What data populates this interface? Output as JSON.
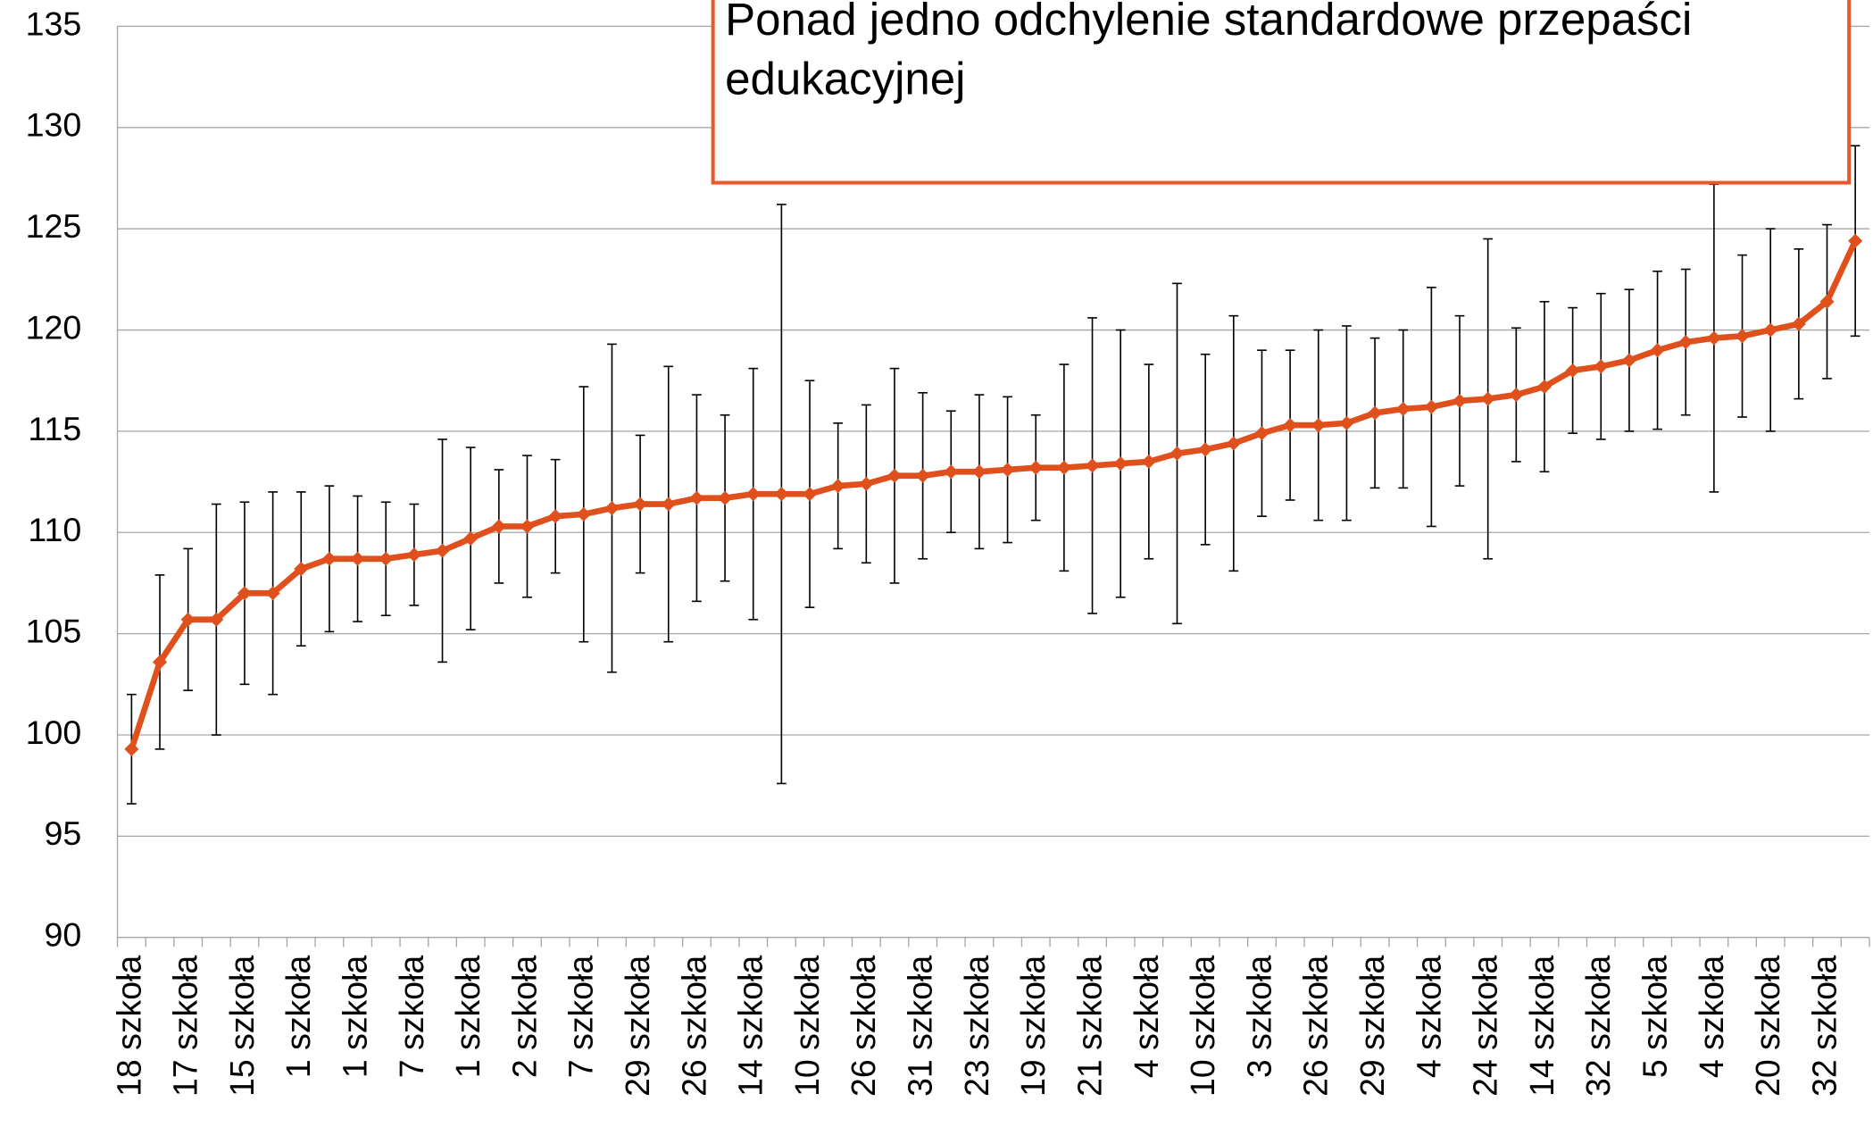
{
  "chart_data": {
    "type": "line",
    "annotation": "Ponad jedno odchylenie standardowe przepaści edukacyjnej",
    "categories": [
      "18 szkoła",
      null,
      "17 szkoła",
      null,
      "15 szkoła",
      null,
      "1 szkoła",
      null,
      "1 szkoła",
      null,
      "7 szkoła",
      null,
      "1 szkoła",
      null,
      "2 szkoła",
      null,
      "7 szkoła",
      null,
      "29 szkoła",
      null,
      "26 szkoła",
      null,
      "14 szkoła",
      null,
      "10 szkoła",
      null,
      "26 szkoła",
      null,
      "31 szkoła",
      null,
      "23 szkoła",
      null,
      "19 szkoła",
      null,
      "21 szkoła",
      null,
      "4 szkoła",
      null,
      "10 szkoła",
      null,
      "3 szkoła",
      null,
      "26 szkoła",
      null,
      "29 szkoła",
      null,
      "4 szkoła",
      null,
      "24 szkoła",
      null,
      "14 szkoła",
      null,
      "32 szkoła",
      null,
      "5 szkoła",
      null,
      "4 szkoła",
      null,
      "20 szkoła",
      null,
      "32 szkoła",
      null
    ],
    "values": [
      99.3,
      103.6,
      105.7,
      105.7,
      107.0,
      107.0,
      108.2,
      108.7,
      108.7,
      108.7,
      108.9,
      109.1,
      109.7,
      110.3,
      110.3,
      110.8,
      110.9,
      111.2,
      111.4,
      111.4,
      111.7,
      111.7,
      111.9,
      111.9,
      111.9,
      112.3,
      112.4,
      112.8,
      112.8,
      113.0,
      113.0,
      113.1,
      113.2,
      113.2,
      113.3,
      113.4,
      113.5,
      113.9,
      114.1,
      114.4,
      114.9,
      115.3,
      115.3,
      115.4,
      115.9,
      116.1,
      116.2,
      116.5,
      116.6,
      116.8,
      117.2,
      118.0,
      118.2,
      118.5,
      119.0,
      119.4,
      119.6,
      119.7,
      120.0,
      120.3,
      121.4,
      124.4
    ],
    "errors": [
      2.7,
      4.3,
      3.5,
      5.7,
      4.5,
      5.0,
      3.8,
      3.6,
      3.1,
      2.8,
      2.5,
      5.5,
      4.5,
      2.8,
      3.5,
      2.8,
      6.3,
      8.1,
      3.4,
      6.8,
      5.1,
      4.1,
      6.2,
      14.3,
      5.6,
      3.1,
      3.9,
      5.3,
      4.1,
      3.0,
      3.8,
      3.6,
      2.6,
      5.1,
      7.3,
      6.6,
      4.8,
      8.4,
      4.7,
      6.3,
      4.1,
      3.7,
      4.7,
      4.8,
      3.7,
      3.9,
      5.9,
      4.2,
      7.9,
      3.3,
      4.2,
      3.1,
      3.6,
      3.5,
      3.9,
      3.6,
      7.6,
      4.0,
      5.0,
      3.7,
      3.8,
      4.7
    ],
    "color": "#e0501c",
    "ylim": [
      90,
      135
    ],
    "yticks": [
      90,
      95,
      100,
      105,
      110,
      115,
      120,
      125,
      130,
      135
    ],
    "grid": true
  }
}
